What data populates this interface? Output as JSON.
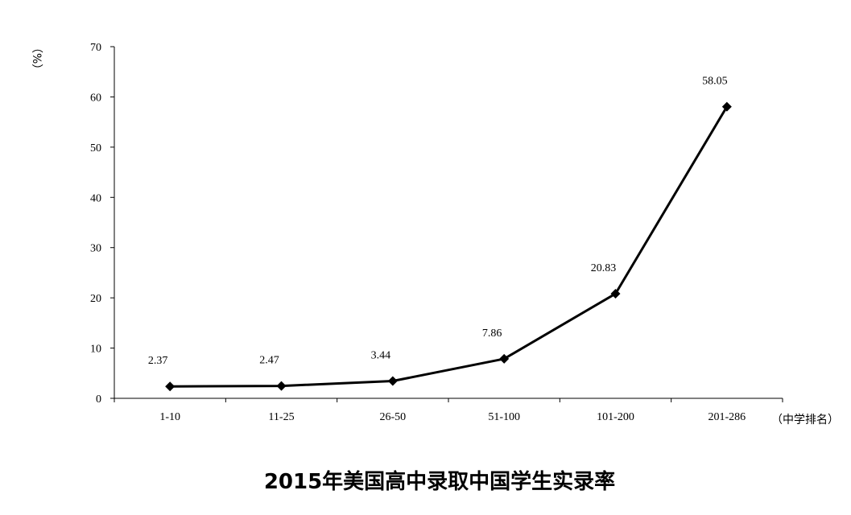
{
  "chart_data": {
    "type": "line",
    "title": "2015年美国高中录取中国学生实录率",
    "xlabel": "（中学排名）",
    "ylabel": "（%）",
    "categories": [
      "1-10",
      "11-25",
      "26-50",
      "51-100",
      "101-200",
      "201-286"
    ],
    "series": [
      {
        "values": [
          2.37,
          2.47,
          3.44,
          7.86,
          20.83,
          58.05
        ],
        "data_labels": [
          "2.37",
          "2.47",
          "3.44",
          "7.86",
          "20.83",
          "58.05"
        ],
        "color": "#000000",
        "marker": "diamond"
      }
    ],
    "ylim": [
      0,
      70
    ],
    "yticks": [
      "0",
      "10",
      "20",
      "30",
      "40",
      "50",
      "60",
      "70"
    ],
    "grid": false,
    "legend": "none"
  }
}
